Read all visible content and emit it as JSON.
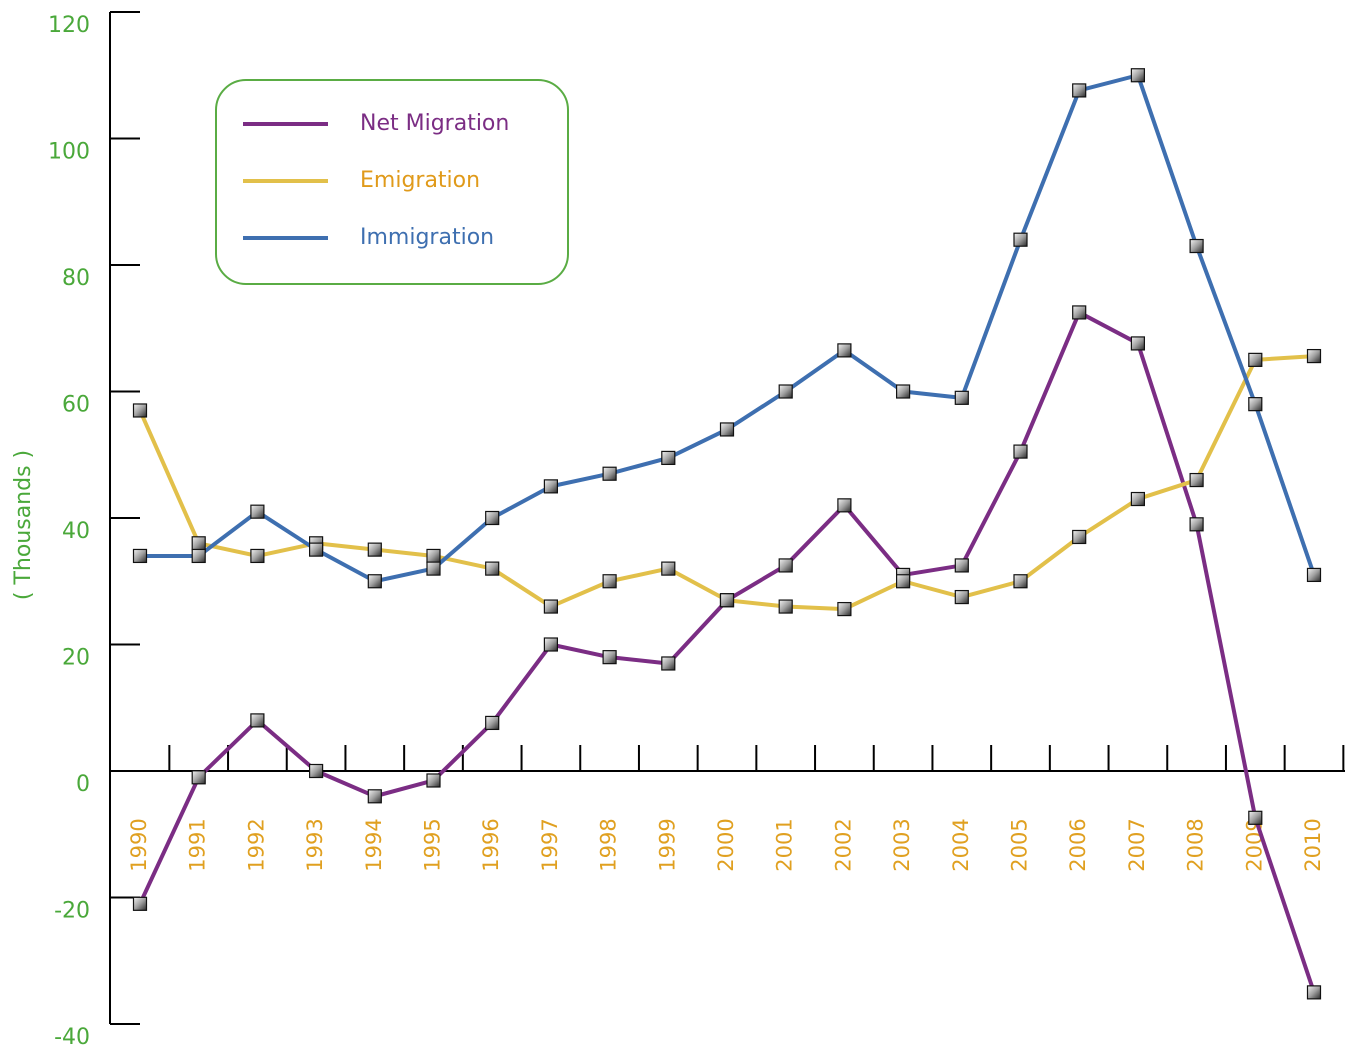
{
  "chart_data": {
    "type": "line",
    "y_label": "( Thousands )",
    "categories": [
      "1990",
      "1991",
      "1992",
      "1993",
      "1994",
      "1995",
      "1996",
      "1997",
      "1998",
      "1999",
      "2000",
      "2001",
      "2002",
      "2003",
      "2004",
      "2005",
      "2006",
      "2007",
      "2008",
      "2009",
      "2010"
    ],
    "series": [
      {
        "name": "Net Migration",
        "color": "#7b2d84",
        "values": [
          -21,
          -1,
          8,
          0,
          -4,
          -1.5,
          7.6,
          20,
          18,
          17,
          27,
          32.5,
          42,
          31,
          32.5,
          50.5,
          72.5,
          67.6,
          39,
          -7.4,
          -35
        ]
      },
      {
        "name": "Emigration",
        "color": "#e2c04a",
        "values": [
          57,
          36,
          34,
          36,
          35,
          34,
          32,
          26,
          30,
          32,
          27,
          26,
          25.6,
          30,
          27.5,
          30,
          37,
          43,
          46,
          65,
          65.6
        ]
      },
      {
        "name": "Immigration",
        "color": "#3e6fb0",
        "values": [
          34,
          34,
          41,
          35,
          30,
          32,
          40,
          45,
          47,
          49.5,
          54,
          60,
          66.5,
          60,
          59,
          84,
          107.6,
          110,
          83,
          58,
          31
        ]
      }
    ],
    "ylim": [
      -40,
      120
    ],
    "yticks": [
      -40,
      -20,
      0,
      20,
      40,
      60,
      80,
      100,
      120
    ],
    "legend": "upper left"
  }
}
